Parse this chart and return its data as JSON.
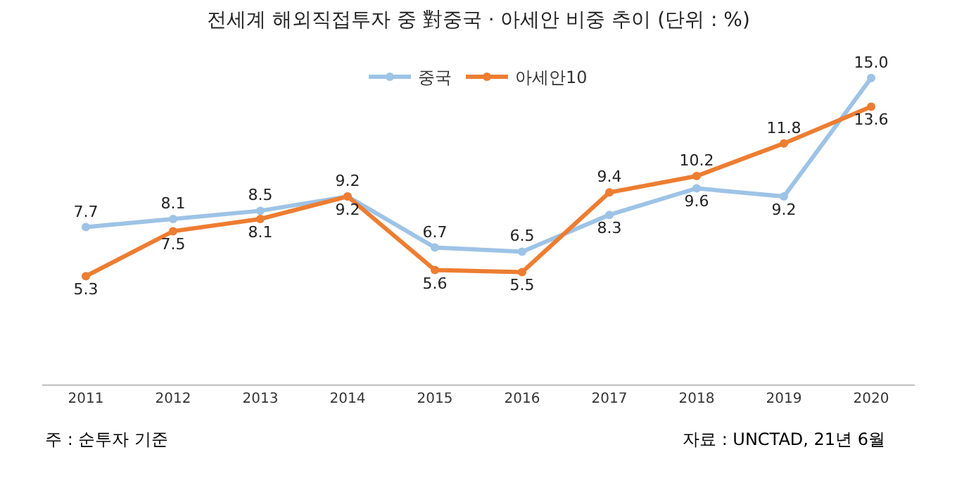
{
  "chart_data": {
    "type": "line",
    "title": "전세계 해외직접투자 중 對중국 · 아세안 비중 추이 (단위 : %)",
    "categories": [
      "2011",
      "2012",
      "2013",
      "2014",
      "2015",
      "2016",
      "2017",
      "2018",
      "2019",
      "2020"
    ],
    "series": [
      {
        "name": "중국",
        "color": "#9dc3e6",
        "values": [
          7.7,
          8.1,
          8.5,
          9.2,
          6.7,
          6.5,
          8.3,
          9.6,
          9.2,
          15.0
        ],
        "value_labels": [
          "7.7",
          "8.1",
          "8.5",
          "9.2",
          "6.7",
          "6.5",
          "8.3",
          "9.6",
          "9.2",
          "15.0"
        ]
      },
      {
        "name": "아세안10",
        "color": "#ed7d31",
        "values": [
          5.3,
          7.5,
          8.1,
          9.2,
          5.6,
          5.5,
          9.4,
          10.2,
          11.8,
          13.6
        ],
        "value_labels": [
          "5.3",
          "7.5",
          "8.1",
          "9.2",
          "5.6",
          "5.5",
          "9.4",
          "10.2",
          "11.8",
          "13.6"
        ]
      }
    ],
    "tick_labels": "x",
    "legend": "top",
    "marker": "circle",
    "grid": false,
    "annotations": [
      "주 : 순투자 기준",
      "자료 : UNCTAD, 21년 6월"
    ]
  }
}
